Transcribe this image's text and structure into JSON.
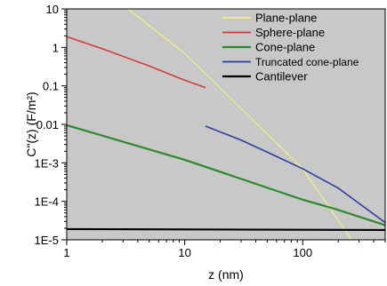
{
  "chart_data": {
    "type": "line",
    "xlabel": "z (nm)",
    "ylabel": "C\"(z) (F/m²)",
    "xscale": "log",
    "yscale": "log",
    "xlim": [
      1,
      500
    ],
    "ylim": [
      1e-05,
      10
    ],
    "x_ticks": [
      {
        "value": 1,
        "label": "1"
      },
      {
        "value": 10,
        "label": "10"
      },
      {
        "value": 100,
        "label": "100"
      }
    ],
    "y_ticks": [
      {
        "value": 10,
        "label": "10"
      },
      {
        "value": 1,
        "label": "1"
      },
      {
        "value": 0.1,
        "label": "0.1"
      },
      {
        "value": 0.01,
        "label": "0.01"
      },
      {
        "value": 0.001,
        "label": "1E-3"
      },
      {
        "value": 0.0001,
        "label": "1E-4"
      },
      {
        "value": 1e-05,
        "label": "1E-5"
      }
    ],
    "grid": false,
    "background_color": "#c8c8c8",
    "legend_position": "top-right",
    "series": [
      {
        "name": "Plane-plane",
        "color": "#f2f07a",
        "width": 1.2,
        "x": [
          3.3,
          10,
          100,
          260
        ],
        "y": [
          10,
          0.7,
          0.0007,
          1e-05
        ]
      },
      {
        "name": "Sphere-plane",
        "color": "#d83a3a",
        "width": 1.6,
        "x": [
          1,
          2,
          5,
          10,
          15
        ],
        "y": [
          1.9,
          0.92,
          0.33,
          0.14,
          0.09
        ]
      },
      {
        "name": "Cone-plane",
        "color": "#2b8a2b",
        "width": 2.2,
        "x": [
          1,
          10,
          100,
          200,
          500
        ],
        "y": [
          0.0095,
          0.0012,
          0.00011,
          6e-05,
          2.4e-05
        ]
      },
      {
        "name": "Truncated cone-plane",
        "color": "#2c3fa0",
        "width": 1.6,
        "x": [
          15,
          30,
          50,
          100,
          200,
          500
        ],
        "y": [
          0.009,
          0.0039,
          0.0019,
          0.0007,
          0.00022,
          2.8e-05
        ]
      },
      {
        "name": "Cantilever",
        "color": "#000000",
        "width": 2.2,
        "x": [
          1,
          500
        ],
        "y": [
          1.9e-05,
          1.8e-05
        ]
      }
    ]
  }
}
